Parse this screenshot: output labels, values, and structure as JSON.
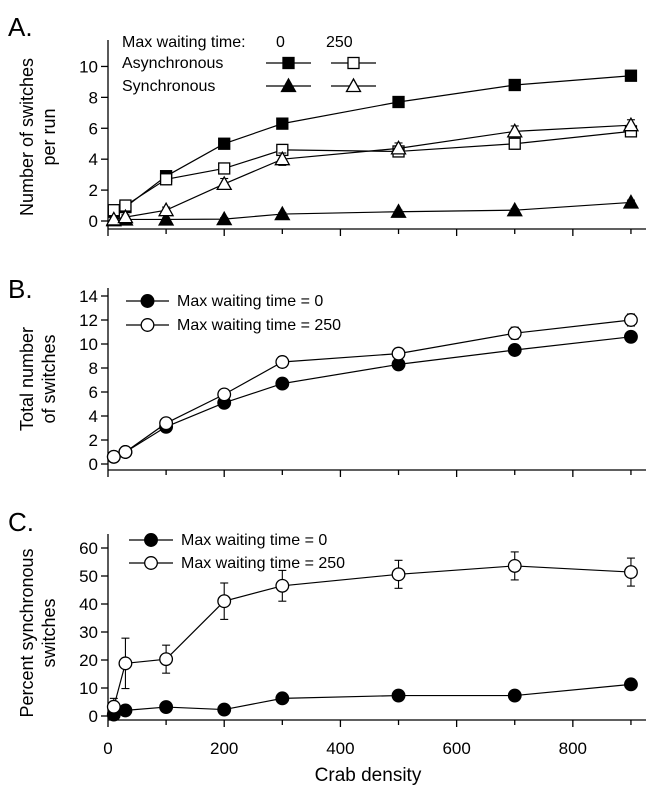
{
  "colors": {
    "ink": "#000000",
    "paper": "#ffffff"
  },
  "chart_data": [
    {
      "panel_label": "A.",
      "type": "line",
      "x": [
        10,
        30,
        100,
        200,
        300,
        500,
        700,
        900
      ],
      "ylabel": [
        "Number of switches",
        "per run"
      ],
      "ylim": [
        0,
        11
      ],
      "yticks": [
        0,
        2,
        4,
        6,
        8,
        10
      ],
      "legend": {
        "header_label": "Max waiting time:",
        "col_labels": [
          "0",
          "250"
        ],
        "rows": [
          "Asynchronous",
          "Synchronous"
        ]
      },
      "series": [
        {
          "row": "Asynchronous",
          "col": "0",
          "marker": "square",
          "filled": true,
          "values": [
            0.6,
            0.9,
            2.9,
            5.0,
            6.3,
            7.7,
            8.8,
            9.4
          ],
          "errors": [
            0.2,
            0.2,
            0.25,
            0.3,
            0.25,
            0.3,
            0.3,
            0.3
          ]
        },
        {
          "row": "Asynchronous",
          "col": "250",
          "marker": "square",
          "filled": false,
          "values": [
            0.7,
            1.0,
            2.7,
            3.4,
            4.6,
            4.5,
            5.0,
            5.8
          ],
          "errors": [
            0.3,
            0.3,
            0.35,
            0.35,
            0.35,
            0.3,
            0.35,
            0.35
          ]
        },
        {
          "row": "Synchronous",
          "col": "0",
          "marker": "triangle",
          "filled": true,
          "values": [
            0.05,
            0.1,
            0.1,
            0.12,
            0.45,
            0.6,
            0.7,
            1.2
          ],
          "errors": [
            0.05,
            0.05,
            0.1,
            0.1,
            0.1,
            0.1,
            0.1,
            0.15
          ]
        },
        {
          "row": "Synchronous",
          "col": "250",
          "marker": "triangle",
          "filled": false,
          "values": [
            0.1,
            0.25,
            0.7,
            2.4,
            4.0,
            4.7,
            5.8,
            6.2
          ],
          "errors": [
            0.1,
            0.15,
            0.2,
            0.35,
            0.4,
            0.35,
            0.35,
            0.35
          ]
        }
      ]
    },
    {
      "panel_label": "B.",
      "type": "line",
      "x": [
        10,
        30,
        100,
        200,
        300,
        500,
        700,
        900
      ],
      "ylabel": [
        "Total number",
        "of switches"
      ],
      "ylim": [
        0,
        14
      ],
      "yticks": [
        0,
        2,
        4,
        6,
        8,
        10,
        12,
        14
      ],
      "series": [
        {
          "name": "Max waiting time = 0",
          "marker": "circle",
          "filled": true,
          "values": [
            0.6,
            1.0,
            3.1,
            5.1,
            6.7,
            8.3,
            9.5,
            10.6
          ],
          "errors": [
            0.2,
            0.2,
            0.3,
            0.3,
            0.3,
            0.35,
            0.35,
            0.4
          ]
        },
        {
          "name": "Max waiting time = 250",
          "marker": "circle",
          "filled": false,
          "values": [
            0.6,
            1.0,
            3.4,
            5.8,
            8.5,
            9.2,
            10.9,
            12.0
          ],
          "errors": [
            0.2,
            0.2,
            0.35,
            0.4,
            0.45,
            0.45,
            0.5,
            0.5
          ]
        }
      ]
    },
    {
      "panel_label": "C.",
      "type": "line",
      "x": [
        10,
        30,
        100,
        200,
        300,
        500,
        700,
        900
      ],
      "xlabel": "Crab density",
      "xlim": [
        0,
        950
      ],
      "xticks": [
        0,
        200,
        400,
        600,
        800
      ],
      "ylabel": [
        "Percent synchronous",
        "switches"
      ],
      "ylim": [
        0,
        65
      ],
      "yticks": [
        0,
        10,
        20,
        30,
        40,
        50,
        60
      ],
      "series": [
        {
          "name": "Max waiting time = 0",
          "marker": "circle",
          "filled": true,
          "values": [
            0.5,
            2.0,
            3.2,
            2.3,
            6.3,
            7.3,
            7.3,
            11.3
          ],
          "errors": [
            0.5,
            1.0,
            1.0,
            1.0,
            1.2,
            1.2,
            1.2,
            1.5
          ]
        },
        {
          "name": "Max waiting time = 250",
          "marker": "circle",
          "filled": false,
          "values": [
            3.3,
            18.8,
            20.3,
            41.0,
            46.5,
            50.6,
            53.6,
            51.4
          ],
          "errors": [
            3.0,
            9.0,
            5.0,
            6.5,
            5.5,
            5.0,
            5.0,
            5.0
          ]
        }
      ]
    }
  ]
}
